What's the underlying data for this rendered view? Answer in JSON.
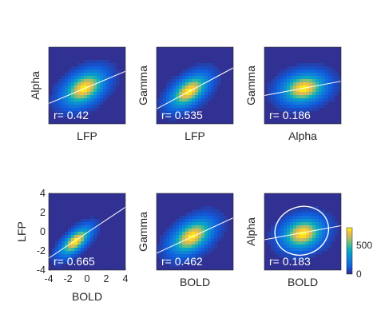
{
  "colors": {
    "background": "#3a2bb5",
    "fit_line": "#ffffff",
    "text": "#262626"
  },
  "chart_data": [
    {
      "type": "heatmap",
      "xlabel": "LFP",
      "ylabel": "Alpha",
      "r_label": "r= 0.42",
      "r": 0.42,
      "center": [
        -0.3,
        -0.3
      ],
      "spread": [
        1.3,
        1.1
      ],
      "slope": 0.42,
      "intercept": -0.2
    },
    {
      "type": "heatmap",
      "xlabel": "LFP",
      "ylabel": "Gamma",
      "r_label": "r= 0.535",
      "r": 0.535,
      "center": [
        -0.6,
        -0.6
      ],
      "spread": [
        1.2,
        1.05
      ],
      "slope": 0.535,
      "intercept": -0.3
    },
    {
      "type": "heatmap",
      "xlabel": "Alpha",
      "ylabel": "Gamma",
      "r_label": "r= 0.186",
      "r": 0.186,
      "center": [
        0.1,
        -0.3
      ],
      "spread": [
        1.4,
        0.95
      ],
      "slope": 0.186,
      "intercept": -0.3
    },
    {
      "type": "heatmap",
      "xlabel": "BOLD",
      "ylabel": "LFP",
      "r_label": "r= 0.665",
      "r": 0.665,
      "center": [
        -1.2,
        -1.0
      ],
      "spread": [
        0.95,
        0.9
      ],
      "slope": 0.665,
      "intercept": -0.1,
      "xlim": [
        -4,
        4
      ],
      "ylim": [
        -4,
        4
      ],
      "xticks": [
        "-4",
        "-2",
        "0",
        "2",
        "4"
      ],
      "yticks": [
        "-4",
        "-2",
        "0",
        "2",
        "4"
      ]
    },
    {
      "type": "heatmap",
      "xlabel": "BOLD",
      "ylabel": "Gamma",
      "r_label": "r= 0.462",
      "r": 0.462,
      "center": [
        -0.3,
        -0.5
      ],
      "spread": [
        1.3,
        1.1
      ],
      "slope": 0.462,
      "intercept": -0.4
    },
    {
      "type": "heatmap",
      "xlabel": "BOLD",
      "ylabel": "Alpha",
      "r_label": "r= 0.183",
      "r": 0.183,
      "center": [
        0.0,
        -0.2
      ],
      "spread": [
        1.3,
        1.0
      ],
      "slope": 0.183,
      "intercept": -0.1,
      "ellipse": true
    }
  ],
  "colorbar": {
    "colormap": "parula",
    "ticks": [
      "500",
      "0"
    ],
    "range": [
      0,
      800
    ]
  }
}
